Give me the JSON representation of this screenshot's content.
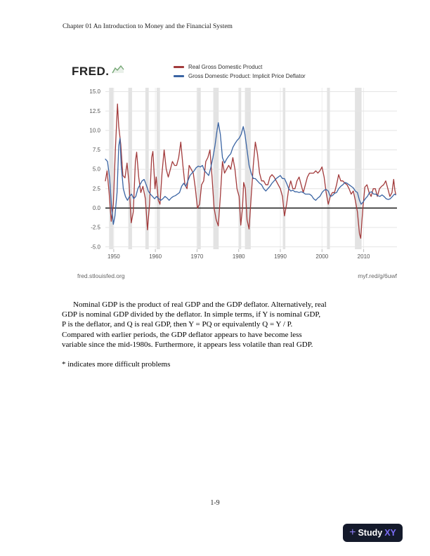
{
  "header": {
    "title": "Chapter 01 An Introduction to Money and the Financial System"
  },
  "chart": {
    "brand": "FRED.",
    "brand_icon": "sparkline-icon",
    "footer_left": "fred.stlouisfed.org",
    "footer_right": "myf.red/g/6uwf"
  },
  "chart_data": {
    "type": "line",
    "title": "",
    "xlabel": "",
    "ylabel": "",
    "xlim": [
      1948,
      2018
    ],
    "ylim": [
      -5.3,
      15.5
    ],
    "grid": true,
    "legend_position": "top",
    "grid_color": "#e4e4e4",
    "vgrid_color": "#ededed",
    "recession_color": "#e3e3e3",
    "zero_line_color": "#1a1a1a",
    "tick_color": "#bbbbbb",
    "tick_label_color": "#555555",
    "x_ticks": [
      {
        "value": 1950,
        "label": "1950"
      },
      {
        "value": 1960,
        "label": "1960"
      },
      {
        "value": 1970,
        "label": "1970"
      },
      {
        "value": 1980,
        "label": "1980"
      },
      {
        "value": 1990,
        "label": "1990"
      },
      {
        "value": 2000,
        "label": "2000"
      },
      {
        "value": 2010,
        "label": "2010"
      }
    ],
    "y_ticks": [
      {
        "value": 15.0,
        "label": "15.0"
      },
      {
        "value": 12.5,
        "label": "12.5"
      },
      {
        "value": 10.0,
        "label": "10.0"
      },
      {
        "value": 7.5,
        "label": "7.5"
      },
      {
        "value": 5.0,
        "label": "5.0"
      },
      {
        "value": 2.5,
        "label": "2.5"
      },
      {
        "value": 0.0,
        "label": "0.0"
      },
      {
        "value": -2.5,
        "label": "-2.5"
      },
      {
        "value": -5.0,
        "label": "-5.0"
      }
    ],
    "recessions": [
      [
        1948.9,
        1949.9
      ],
      [
        1953.5,
        1954.4
      ],
      [
        1957.6,
        1958.4
      ],
      [
        1960.3,
        1961.1
      ],
      [
        1969.9,
        1970.9
      ],
      [
        1973.9,
        1975.2
      ],
      [
        1980.0,
        1980.6
      ],
      [
        1981.5,
        1982.9
      ],
      [
        1990.6,
        1991.2
      ],
      [
        2001.2,
        2001.9
      ],
      [
        2007.9,
        2009.5
      ]
    ],
    "series": [
      {
        "name": "Real Gross Domestic Product",
        "color": "#a23b3c",
        "x": [
          1948.0,
          1948.4,
          1948.9,
          1949.4,
          1949.9,
          1950.4,
          1950.9,
          1951.2,
          1951.7,
          1952.2,
          1952.7,
          1953.2,
          1953.7,
          1954.2,
          1954.7,
          1955.2,
          1955.5,
          1956.0,
          1956.5,
          1957.0,
          1957.6,
          1958.1,
          1958.6,
          1959.1,
          1959.4,
          1959.9,
          1960.2,
          1960.7,
          1961.1,
          1961.6,
          1962.1,
          1962.6,
          1963.1,
          1963.6,
          1964.1,
          1964.6,
          1965.1,
          1965.6,
          1966.1,
          1966.6,
          1967.1,
          1967.6,
          1968.1,
          1968.6,
          1969.1,
          1969.6,
          1970.1,
          1970.6,
          1971.1,
          1971.6,
          1972.1,
          1972.6,
          1973.1,
          1973.6,
          1974.1,
          1974.6,
          1975.1,
          1975.6,
          1976.1,
          1976.6,
          1977.1,
          1977.6,
          1978.1,
          1978.6,
          1979.1,
          1979.6,
          1980.1,
          1980.5,
          1980.9,
          1981.2,
          1981.6,
          1982.0,
          1982.5,
          1983.0,
          1983.5,
          1984.0,
          1984.5,
          1985.0,
          1985.5,
          1986.0,
          1986.5,
          1987.0,
          1987.5,
          1988.0,
          1988.5,
          1989.0,
          1989.5,
          1990.0,
          1990.5,
          1991.0,
          1991.5,
          1992.0,
          1992.5,
          1993.0,
          1993.5,
          1994.0,
          1994.5,
          1995.0,
          1995.5,
          1996.0,
          1996.5,
          1997.0,
          1997.5,
          1998.0,
          1998.5,
          1999.0,
          1999.5,
          2000.0,
          2000.5,
          2001.0,
          2001.5,
          2002.0,
          2002.5,
          2003.0,
          2003.5,
          2004.0,
          2004.5,
          2005.0,
          2005.5,
          2006.0,
          2006.5,
          2007.0,
          2007.5,
          2008.0,
          2008.5,
          2009.0,
          2009.3,
          2009.8,
          2010.3,
          2010.8,
          2011.3,
          2011.8,
          2012.3,
          2012.8,
          2013.3,
          2013.8,
          2014.3,
          2014.8,
          2015.3,
          2015.8,
          2016.3,
          2016.8,
          2017.2,
          2017.5,
          2017.7
        ],
        "y": [
          3.5,
          4.8,
          2.0,
          -1.7,
          0.5,
          7.5,
          13.4,
          10.5,
          8.2,
          4.2,
          3.9,
          5.8,
          3.0,
          -1.9,
          -0.5,
          6.0,
          7.2,
          4.0,
          2.0,
          2.8,
          1.2,
          -2.8,
          0.5,
          6.5,
          7.3,
          2.5,
          4.0,
          1.0,
          0.5,
          4.5,
          7.5,
          5.0,
          4.0,
          5.0,
          6.0,
          5.5,
          5.5,
          6.5,
          8.5,
          5.5,
          3.0,
          2.5,
          5.5,
          5.0,
          4.5,
          2.5,
          0.0,
          0.5,
          3.0,
          3.5,
          6.0,
          6.5,
          7.5,
          4.0,
          0.0,
          -1.5,
          -2.3,
          1.5,
          6.0,
          4.5,
          5.0,
          5.5,
          5.0,
          6.5,
          5.0,
          2.5,
          1.5,
          -2.2,
          0.0,
          3.3,
          2.5,
          -1.5,
          -2.7,
          1.5,
          5.5,
          8.5,
          7.0,
          4.5,
          3.5,
          3.5,
          3.0,
          3.0,
          4.0,
          4.3,
          4.0,
          3.5,
          3.0,
          2.5,
          1.5,
          -1.0,
          0.5,
          2.5,
          3.5,
          2.5,
          2.5,
          3.5,
          4.0,
          3.0,
          2.0,
          3.0,
          4.0,
          4.5,
          4.5,
          4.5,
          4.8,
          4.5,
          4.8,
          5.3,
          4.0,
          2.0,
          0.5,
          1.5,
          2.0,
          2.0,
          3.0,
          4.3,
          3.5,
          3.5,
          3.2,
          3.0,
          2.5,
          1.8,
          2.2,
          1.0,
          -0.5,
          -3.3,
          -3.9,
          0.0,
          2.7,
          3.0,
          2.0,
          1.5,
          2.5,
          2.5,
          1.5,
          2.5,
          2.8,
          3.0,
          3.5,
          2.5,
          1.5,
          2.0,
          3.7,
          2.3,
          1.8
        ]
      },
      {
        "name": "Gross Domestic Product: Implicit Price Deflator",
        "color": "#3a64a3",
        "x": [
          1948.0,
          1948.5,
          1949.0,
          1949.5,
          1949.9,
          1950.3,
          1950.8,
          1951.2,
          1951.5,
          1951.8,
          1952.3,
          1952.8,
          1953.3,
          1953.8,
          1954.3,
          1954.8,
          1955.3,
          1955.8,
          1956.3,
          1956.8,
          1957.3,
          1957.8,
          1958.3,
          1958.8,
          1959.3,
          1959.8,
          1960.3,
          1960.8,
          1961.3,
          1961.8,
          1962.3,
          1962.8,
          1963.3,
          1963.8,
          1964.3,
          1964.8,
          1965.3,
          1965.8,
          1966.3,
          1966.8,
          1967.3,
          1967.8,
          1968.3,
          1968.8,
          1969.3,
          1969.8,
          1970.3,
          1970.8,
          1971.3,
          1971.8,
          1972.3,
          1972.8,
          1973.3,
          1973.8,
          1974.3,
          1974.8,
          1975.1,
          1975.6,
          1976.1,
          1976.6,
          1977.1,
          1977.6,
          1978.1,
          1978.6,
          1979.1,
          1979.6,
          1980.1,
          1980.6,
          1981.1,
          1981.5,
          1982.0,
          1982.5,
          1983.0,
          1983.5,
          1984.0,
          1984.5,
          1985.0,
          1985.5,
          1986.0,
          1986.5,
          1987.0,
          1987.5,
          1988.0,
          1988.5,
          1989.0,
          1989.5,
          1990.0,
          1990.5,
          1991.0,
          1991.5,
          1992.0,
          1992.5,
          1993.0,
          1993.5,
          1994.0,
          1994.5,
          1995.0,
          1995.5,
          1996.0,
          1996.5,
          1997.0,
          1997.5,
          1998.0,
          1998.5,
          1999.0,
          1999.5,
          2000.0,
          2000.5,
          2001.0,
          2001.5,
          2002.0,
          2002.5,
          2003.0,
          2003.5,
          2004.0,
          2004.5,
          2005.0,
          2005.5,
          2006.0,
          2006.5,
          2007.0,
          2007.5,
          2008.0,
          2008.5,
          2009.0,
          2009.4,
          2009.9,
          2010.4,
          2010.9,
          2011.4,
          2011.9,
          2012.4,
          2012.9,
          2013.4,
          2013.9,
          2014.4,
          2014.9,
          2015.4,
          2015.9,
          2016.4,
          2016.9,
          2017.4,
          2017.7
        ],
        "y": [
          6.3,
          6.0,
          4.0,
          0.0,
          -2.1,
          -1.0,
          2.0,
          8.0,
          9.0,
          5.5,
          2.5,
          1.5,
          1.0,
          1.5,
          1.8,
          1.2,
          1.5,
          2.5,
          3.0,
          3.5,
          3.7,
          3.0,
          2.2,
          1.8,
          1.5,
          1.2,
          1.5,
          1.2,
          1.0,
          1.2,
          1.5,
          1.3,
          1.0,
          1.3,
          1.5,
          1.6,
          1.8,
          2.0,
          2.8,
          3.2,
          2.8,
          3.5,
          4.2,
          4.5,
          4.8,
          5.2,
          5.4,
          5.3,
          5.5,
          4.8,
          4.5,
          4.2,
          5.2,
          6.5,
          8.0,
          10.0,
          11.0,
          9.5,
          6.5,
          5.8,
          6.3,
          6.7,
          7.0,
          7.8,
          8.3,
          8.7,
          9.0,
          9.5,
          10.5,
          9.5,
          7.5,
          5.5,
          4.5,
          3.8,
          3.8,
          3.5,
          3.2,
          3.0,
          2.5,
          2.2,
          2.5,
          2.8,
          3.2,
          3.5,
          3.8,
          4.0,
          4.2,
          3.8,
          3.8,
          3.2,
          2.5,
          2.2,
          2.3,
          2.1,
          2.1,
          2.0,
          2.1,
          2.0,
          1.8,
          1.8,
          1.8,
          1.6,
          1.2,
          1.0,
          1.3,
          1.5,
          2.0,
          2.3,
          2.4,
          2.2,
          1.5,
          1.6,
          1.9,
          2.0,
          2.5,
          2.8,
          3.0,
          3.3,
          3.2,
          3.0,
          2.8,
          2.6,
          2.2,
          2.0,
          1.0,
          0.5,
          0.8,
          1.2,
          1.5,
          2.0,
          2.1,
          1.8,
          1.8,
          1.6,
          1.5,
          1.7,
          1.5,
          1.2,
          1.1,
          1.2,
          1.5,
          1.8,
          1.7
        ]
      }
    ]
  },
  "body": {
    "paragraph": "Nominal GDP is the product of real GDP and the GDP deflator. Alternatively, real\nGDP is nominal GDP divided by the deflator. In simple terms, if Y is nominal GDP,\nP is the deflator, and Q is real GDP, then Y = PQ or equivalently Q = Y / P.\nCompared with earlier periods, the GDP deflator appears to have become less\nvariable since the mid-1980s. Furthermore, it appears less volatile than real GDP.",
    "footnote": "* indicates more difficult problems"
  },
  "footer": {
    "page_number": "1-9"
  },
  "watermark": {
    "plus": "+",
    "study": "Study",
    "xy": "XY",
    "bg": "#141a2b",
    "accent": "#8a7cf0"
  }
}
